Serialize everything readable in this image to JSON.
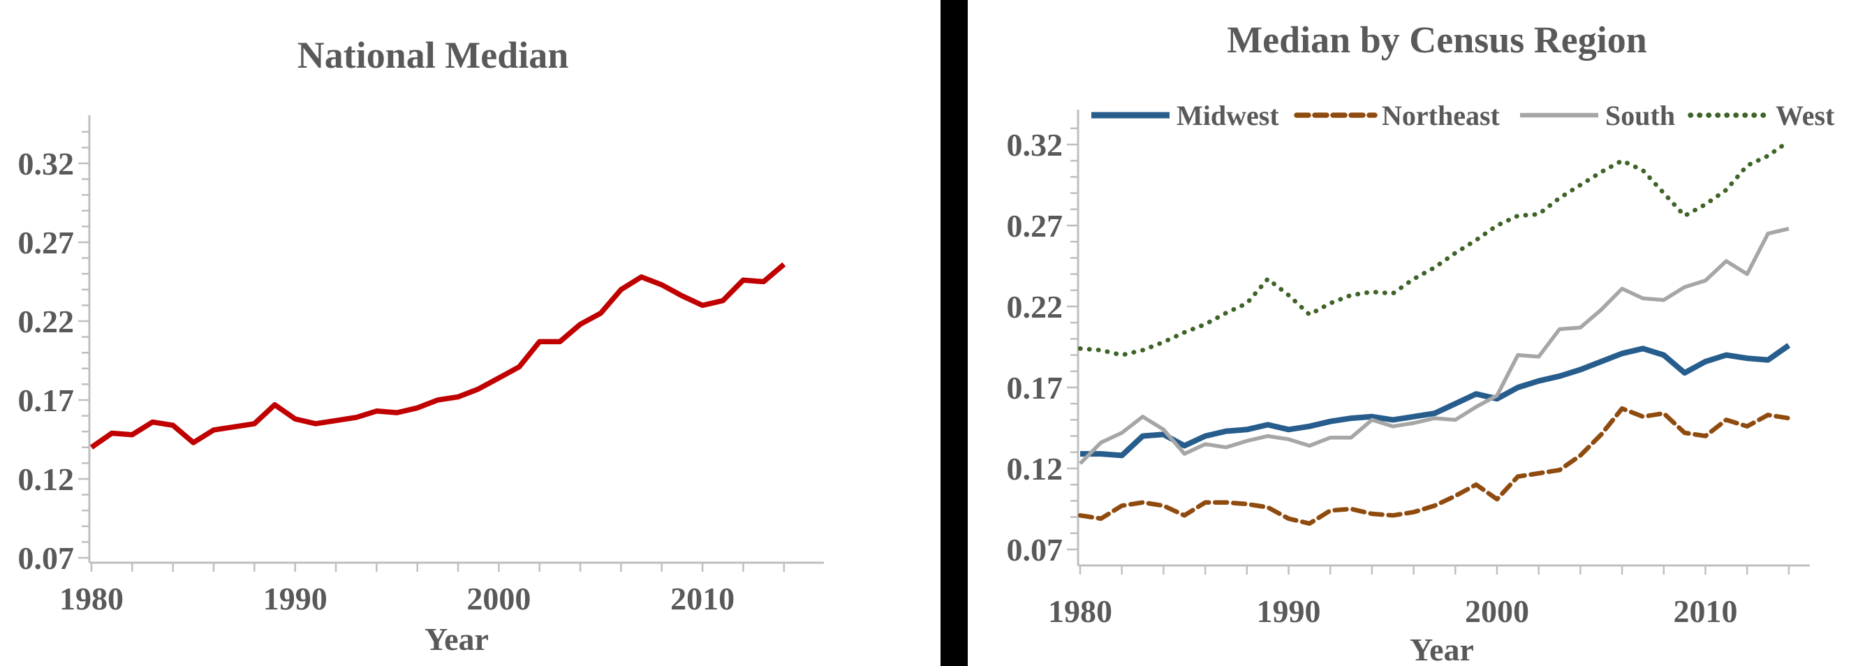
{
  "figure": {
    "background": "#FFFFFF",
    "divider_color": "#000000",
    "text_color": "#595959",
    "axis_color": "#BFBFBF"
  },
  "chart_data": [
    {
      "type": "line",
      "title": "National Median",
      "xlabel": "Year",
      "ylabel": "",
      "grid": false,
      "legend": "none",
      "ylim": [
        0.065,
        0.345
      ],
      "y_tick_values": [
        0.07,
        0.12,
        0.17,
        0.22,
        0.27,
        0.32
      ],
      "y_tick_labels": [
        "0.07",
        "0.12",
        "0.17",
        "0.22",
        "0.27",
        "0.32"
      ],
      "y_minor_step": 0.01,
      "x_labeled_ticks": [
        1980,
        1990,
        2000,
        2010
      ],
      "x_tick_labels": [
        "1980",
        "1990",
        "2000",
        "2010"
      ],
      "x_minor_tick_step_years": 2,
      "years": [
        1980,
        1981,
        1982,
        1983,
        1984,
        1985,
        1986,
        1987,
        1988,
        1989,
        1990,
        1991,
        1992,
        1993,
        1994,
        1995,
        1996,
        1997,
        1998,
        1999,
        2000,
        2001,
        2002,
        2003,
        2004,
        2005,
        2006,
        2007,
        2008,
        2009,
        2010,
        2011,
        2012,
        2013,
        2014
      ],
      "series": [
        {
          "name": "National",
          "color": "#C00000",
          "line_style": "solid",
          "values": [
            0.14,
            0.149,
            0.148,
            0.156,
            0.154,
            0.143,
            0.151,
            0.153,
            0.155,
            0.167,
            0.158,
            0.155,
            0.157,
            0.159,
            0.163,
            0.162,
            0.165,
            0.17,
            0.172,
            0.177,
            0.184,
            0.191,
            0.207,
            0.207,
            0.218,
            0.225,
            0.24,
            0.248,
            0.243,
            0.236,
            0.23,
            0.233,
            0.246,
            0.245,
            0.256
          ]
        }
      ]
    },
    {
      "type": "line",
      "title": "Median by Census Region",
      "xlabel": "Year",
      "ylabel": "",
      "grid": false,
      "legend": "top",
      "legend_entries": [
        "Midwest",
        "Northeast",
        "South",
        "West"
      ],
      "ylim": [
        0.06,
        0.34
      ],
      "y_tick_values": [
        0.07,
        0.12,
        0.17,
        0.22,
        0.27,
        0.32
      ],
      "y_tick_labels": [
        "0.07",
        "0.12",
        "0.17",
        "0.22",
        "0.27",
        "0.32"
      ],
      "y_minor_step": 0.01,
      "x_labeled_ticks": [
        1980,
        1990,
        2000,
        2010
      ],
      "x_tick_labels": [
        "1980",
        "1990",
        "2000",
        "2010"
      ],
      "x_minor_tick_step_years": 2,
      "years": [
        1980,
        1981,
        1982,
        1983,
        1984,
        1985,
        1986,
        1987,
        1988,
        1989,
        1990,
        1991,
        1992,
        1993,
        1994,
        1995,
        1996,
        1997,
        1998,
        1999,
        2000,
        2001,
        2002,
        2003,
        2004,
        2005,
        2006,
        2007,
        2008,
        2009,
        2010,
        2011,
        2012,
        2013,
        2014
      ],
      "series": [
        {
          "name": "Midwest",
          "color": "#265D8C",
          "line_style": "solid",
          "values": [
            0.129,
            0.129,
            0.128,
            0.14,
            0.141,
            0.134,
            0.14,
            0.143,
            0.144,
            0.147,
            0.144,
            0.146,
            0.149,
            0.151,
            0.152,
            0.15,
            0.152,
            0.154,
            0.16,
            0.166,
            0.163,
            0.17,
            0.174,
            0.177,
            0.181,
            0.186,
            0.191,
            0.194,
            0.19,
            0.179,
            0.186,
            0.19,
            0.188,
            0.187,
            0.196
          ]
        },
        {
          "name": "Northeast",
          "color": "#8F4B0E",
          "line_style": "dashed",
          "values": [
            0.091,
            0.089,
            0.097,
            0.099,
            0.097,
            0.091,
            0.099,
            0.099,
            0.098,
            0.096,
            0.089,
            0.086,
            0.094,
            0.095,
            0.092,
            0.091,
            0.093,
            0.097,
            0.103,
            0.11,
            0.101,
            0.115,
            0.117,
            0.119,
            0.128,
            0.141,
            0.157,
            0.152,
            0.154,
            0.142,
            0.14,
            0.15,
            0.146,
            0.153,
            0.151
          ]
        },
        {
          "name": "South",
          "color": "#A6A6A6",
          "line_style": "solid",
          "values": [
            0.123,
            0.136,
            0.142,
            0.152,
            0.144,
            0.129,
            0.135,
            0.133,
            0.137,
            0.14,
            0.138,
            0.134,
            0.139,
            0.139,
            0.15,
            0.146,
            0.148,
            0.151,
            0.15,
            0.158,
            0.165,
            0.19,
            0.189,
            0.206,
            0.207,
            0.218,
            0.231,
            0.225,
            0.224,
            0.232,
            0.236,
            0.248,
            0.24,
            0.265,
            0.268
          ]
        },
        {
          "name": "West",
          "color": "#3E6327",
          "line_style": "dotted",
          "values": [
            0.194,
            0.193,
            0.19,
            0.193,
            0.198,
            0.204,
            0.209,
            0.216,
            0.222,
            0.237,
            0.227,
            0.215,
            0.222,
            0.227,
            0.229,
            0.228,
            0.237,
            0.244,
            0.253,
            0.261,
            0.27,
            0.276,
            0.277,
            0.287,
            0.295,
            0.303,
            0.31,
            0.304,
            0.29,
            0.276,
            0.283,
            0.292,
            0.307,
            0.313,
            0.322
          ]
        }
      ]
    }
  ]
}
